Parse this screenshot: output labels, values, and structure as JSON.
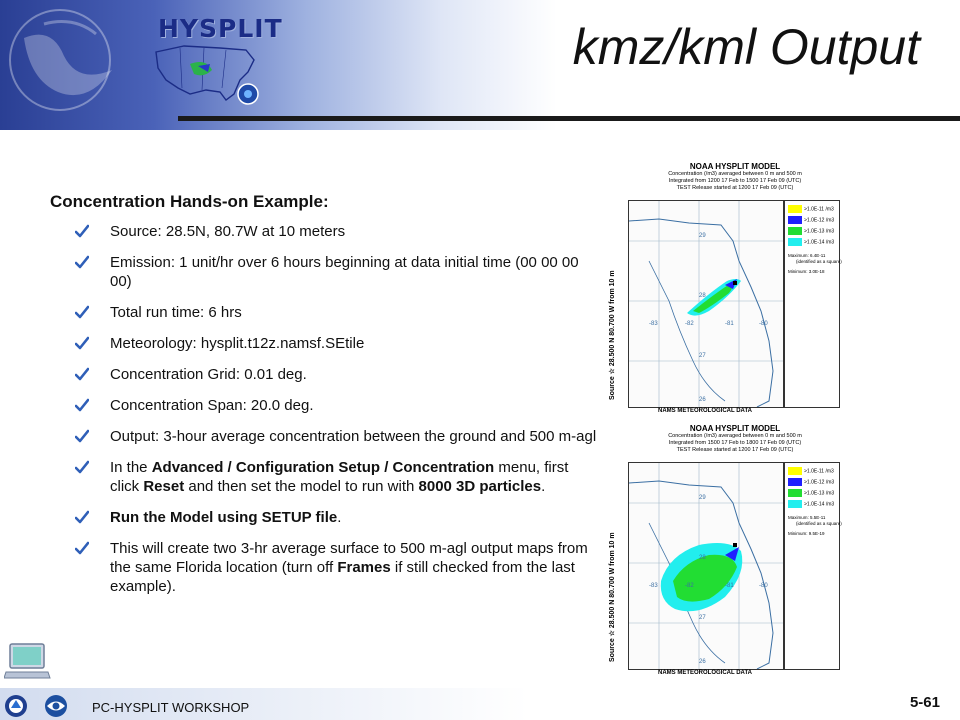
{
  "header": {
    "logo_text": "HYSPLIT",
    "title": "kmz/kml Output"
  },
  "content": {
    "heading": "Concentration Hands-on Example:",
    "bullets": [
      {
        "parts": [
          {
            "t": "Source: 28.5N, 80.7W at 10 meters",
            "b": false
          }
        ]
      },
      {
        "parts": [
          {
            "t": "Emission: 1 unit/hr over 6 hours beginning at data initial time (00 00 00 00)",
            "b": false
          }
        ]
      },
      {
        "parts": [
          {
            "t": "Total run time: 6 hrs",
            "b": false
          }
        ]
      },
      {
        "parts": [
          {
            "t": "Meteorology: hysplit.t12z.namsf.SEtile",
            "b": false
          }
        ]
      },
      {
        "parts": [
          {
            "t": "Concentration Grid: 0.01 deg.",
            "b": false
          }
        ]
      },
      {
        "parts": [
          {
            "t": "Concentration Span: 20.0 deg.",
            "b": false
          }
        ]
      },
      {
        "parts": [
          {
            "t": "Output: 3-hour average concentration between the ground and 500 m-agl",
            "b": false
          }
        ]
      },
      {
        "parts": [
          {
            "t": "In the ",
            "b": false
          },
          {
            "t": "Advanced / Configuration Setup / Concentration",
            "b": true
          },
          {
            "t": " menu, first click ",
            "b": false
          },
          {
            "t": "Reset",
            "b": true
          },
          {
            "t": " and then set the model  to run with ",
            "b": false
          },
          {
            "t": "8000 3D particles",
            "b": true
          },
          {
            "t": ".",
            "b": false
          }
        ]
      },
      {
        "parts": [
          {
            "t": "Run the Model using SETUP file",
            "b": true
          },
          {
            "t": ".",
            "b": false
          }
        ]
      },
      {
        "parts": [
          {
            "t": "This will create two 3-hr average surface to 500 m-agl output maps from the same Florida location (turn off ",
            "b": false
          },
          {
            "t": "Frames",
            "b": true
          },
          {
            "t": " if still checked from the last example).",
            "b": false
          }
        ]
      }
    ]
  },
  "maps": [
    {
      "title": "NOAA HYSPLIT MODEL",
      "sub1": "Concentration  (/m3) averaged between      0 m and    500 m",
      "sub2": "Integrated from 1200 17 Feb to 1500 17 Feb 09 (UTC)",
      "sub3": "TEST Release started at 1200 17 Feb 09 (UTC)",
      "side_label": "Source ☆  28.500  N  80.700  W         from    10 m",
      "footer": "NAMS METEOROLOGICAL DATA",
      "legend": [
        ">1.0E-11 /m3",
        ">1.0E-12 /m3",
        ">1.0E-13 /m3",
        ">1.0E-14 /m3"
      ],
      "max_label": "Maximum: 6.4E-11",
      "max_note": "(identified as a square)",
      "min_label": "Minimum: 3.0E-18",
      "lat_labels": [
        "29",
        "28",
        "27",
        "26"
      ],
      "lon_labels": [
        "-83",
        "-82",
        "-81",
        "-80"
      ]
    },
    {
      "title": "NOAA HYSPLIT MODEL",
      "sub1": "Concentration  (/m3) averaged between      0 m and    500 m",
      "sub2": "Integrated from 1500 17 Feb to 1800 17 Feb 09 (UTC)",
      "sub3": "TEST Release started at 1200 17 Feb 09 (UTC)",
      "side_label": "Source ☆  28.500  N  80.700  W         from    10 m",
      "footer": "NAMS METEOROLOGICAL DATA",
      "legend": [
        ">1.0E-11 /m3",
        ">1.0E-12 /m3",
        ">1.0E-13 /m3",
        ">1.0E-14 /m3"
      ],
      "max_label": "Maximum: 5.5E-11",
      "max_note": "(identified as a square)",
      "min_label": "Minimum: 9.5E-19",
      "lat_labels": [
        "29",
        "28",
        "27",
        "26"
      ],
      "lon_labels": [
        "-83",
        "-82",
        "-81",
        "-80"
      ]
    }
  ],
  "legend_colors": [
    "#ffff00",
    "#1f1fff",
    "#22dd33",
    "#22eeee"
  ],
  "footer": {
    "workshop": "PC-HYSPLIT WORKSHOP",
    "page_number": "5-61"
  }
}
